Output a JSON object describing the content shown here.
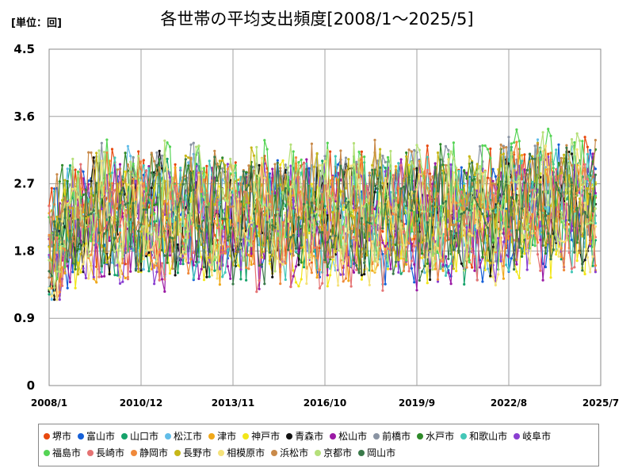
{
  "unit_label": "[単位：回]",
  "chart_data": {
    "type": "line",
    "title": "各世帯の平均支出頻度[2008/1～2025/5]",
    "xlabel": "",
    "ylabel": "",
    "ylim": [
      0,
      4.5
    ],
    "y_ticks": [
      "0",
      "0.9",
      "1.8",
      "2.7",
      "3.6",
      "4.5"
    ],
    "x_ticks": [
      "2008/1",
      "2010/12",
      "2013/11",
      "2016/10",
      "2019/9",
      "2022/8",
      "2025/7"
    ],
    "x_range": [
      "2008/1",
      "2025/7"
    ],
    "grid": true,
    "legend_position": "bottom",
    "series_note": "monthly values per city, approximate reading",
    "series": [
      {
        "name": "堺市",
        "color": "#e8490f"
      },
      {
        "name": "富山市",
        "color": "#1560d8"
      },
      {
        "name": "山口市",
        "color": "#16a36b"
      },
      {
        "name": "松江市",
        "color": "#62bde8"
      },
      {
        "name": "津市",
        "color": "#f0a81a"
      },
      {
        "name": "神戸市",
        "color": "#f2e619"
      },
      {
        "name": "青森市",
        "color": "#111111"
      },
      {
        "name": "松山市",
        "color": "#9b1aa5"
      },
      {
        "name": "前橋市",
        "color": "#8a94a3"
      },
      {
        "name": "水戸市",
        "color": "#2f8a2a"
      },
      {
        "name": "和歌山市",
        "color": "#44c7b8"
      },
      {
        "name": "岐阜市",
        "color": "#8a3fd1"
      },
      {
        "name": "福島市",
        "color": "#55d455"
      },
      {
        "name": "長崎市",
        "color": "#e57373"
      },
      {
        "name": "静岡市",
        "color": "#f08a3c"
      },
      {
        "name": "長野市",
        "color": "#c7b718"
      },
      {
        "name": "相模原市",
        "color": "#f5e27a"
      },
      {
        "name": "浜松市",
        "color": "#c98a4a"
      },
      {
        "name": "京都市",
        "color": "#b5e07a"
      },
      {
        "name": "岡山市",
        "color": "#3a7a4a"
      }
    ]
  }
}
